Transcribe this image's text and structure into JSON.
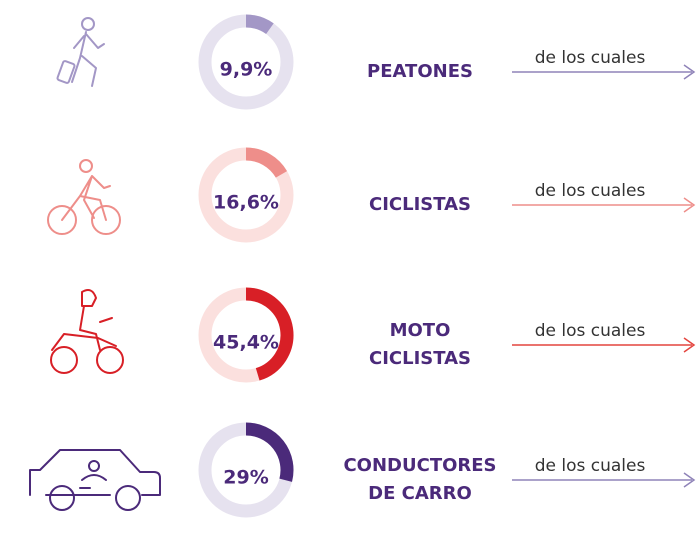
{
  "chart_data": [
    {
      "type": "donut",
      "title_lines": [
        "PEATONES"
      ],
      "values": [
        9.9
      ],
      "value_labels": [
        "9,9%"
      ],
      "color": "#a397c6",
      "track_color": "#e6e2ef",
      "line_color": "#8f83b8",
      "annotation": "de los cuales"
    },
    {
      "type": "donut",
      "title_lines": [
        "CICLISTAS"
      ],
      "values": [
        16.6
      ],
      "value_labels": [
        "16,6%"
      ],
      "color": "#ee8e8a",
      "track_color": "#fbe0de",
      "line_color": "#ee8e8a",
      "annotation": "de los cuales"
    },
    {
      "type": "donut",
      "title_lines": [
        "MOTO",
        "CICLISTAS"
      ],
      "values": [
        45.4
      ],
      "value_labels": [
        "45,4%"
      ],
      "color": "#d81f26",
      "track_color": "#fbe0de",
      "line_color": "#e4453f",
      "annotation": "de los cuales"
    },
    {
      "type": "donut",
      "title_lines": [
        "CONDUCTORES",
        "DE CARRO"
      ],
      "values": [
        29
      ],
      "value_labels": [
        "29%"
      ],
      "color": "#4b2a7a",
      "track_color": "#e6e2ef",
      "line_color": "#8f83b8",
      "annotation": "de los cuales"
    }
  ]
}
